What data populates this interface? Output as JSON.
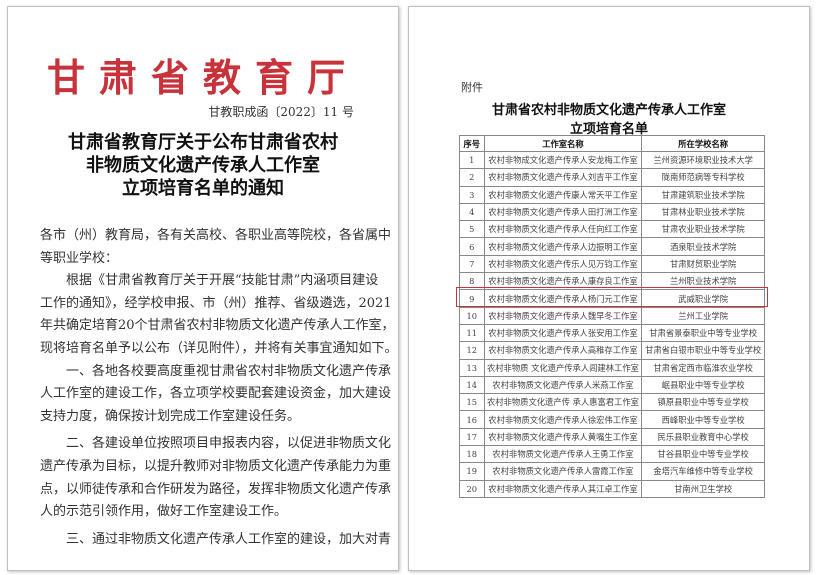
{
  "left_page": {
    "letterhead": "甘肃省教育厅",
    "doc_number": "甘教职成函〔2022〕11 号",
    "heading": [
      "甘肃省教育厅关于公布甘肃省农村",
      "非物质文化遗产传承人工作室",
      "立项培育名单的通知"
    ],
    "body_lines": [
      "各市（州）教育局，各有关高校、各职业高等院校，各省属中",
      "等职业学校：",
      "　　根据《甘肃省教育厅关于开展“技能甘肃”内涵项目建设",
      "工作的通知》，经学校申报、市（州）推荐、省级遴选，2021",
      "年共确定培育20个甘肃省农村非物质文化遗产传承人工作室，",
      "现将培育名单予以公布（详见附件），并将有关事宜通知如下。",
      "　　一、各地各校要高度重视甘肃省农村非物质文化遗产传承",
      "人工作室的建设工作，各立项学校要配套建设资金，加大建设",
      "支持力度，确保按计划完成工作室建设任务。",
      "　　二、各建设单位按照项目申报表内容，以促进非物质文化",
      "遗产传承为目标，以提升教师对非物质文化遗产传承能力为重",
      "点，以师徒传承和合作研发为路径，发挥非物质文化遗产传承",
      "人的示范引领作用，做好工作室建设工作。",
      "　　三、通过非物质文化遗产传承人工作室的建设，加大对青"
    ]
  },
  "right_page": {
    "attachment_label": "附件",
    "title": [
      "甘肃省农村非物质文化遗产传承人工作室",
      "立项培育名单"
    ],
    "columns": [
      "序号",
      "工作室名称",
      "所在学校名称"
    ],
    "highlight_row": 9,
    "highlight_color": "#c8323a",
    "rows": [
      [
        "1",
        "农村非物成文化遗产传承人安龙梅工作室",
        "兰州资源环境职业技术大学"
      ],
      [
        "2",
        "农村非物质文化遗产传承人刘吉平工作室",
        "陇南师范病等专科学校"
      ],
      [
        "3",
        "农村非物质文化遗产传康人常天平工作室",
        "甘肃建筑职业技术学院"
      ],
      [
        "4",
        "农村非物质文化遗产传承人田打洲工作室",
        "甘肃林业职业技术学院"
      ],
      [
        "5",
        "农村非物质文化遗产传承人任向红工作室",
        "甘肃农业职业技术学院"
      ],
      [
        "6",
        "农村非物质文化遗产传承人边振明工作室",
        "酒泉职业技术学院"
      ],
      [
        "7",
        "农村非物质文化遗产传乐人见万钧工作室",
        "甘肃财贸职业学院"
      ],
      [
        "8",
        "农村非物质文化遗产传承人康存良工作室",
        "兰州职业技术学院"
      ],
      [
        "9",
        "农村非物质文化遗产传承人杨门元工作室",
        "武威职业学院"
      ],
      [
        "10",
        "农村非物质文化遗产传承人魏早冬工作室",
        "兰州工业学院"
      ],
      [
        "11",
        "农村非物质文化遗产传承人张安用工作室",
        "甘肃省景泰职业中等专业学校"
      ],
      [
        "12",
        "农村非物质文化遗产传承人高稚存工作室",
        "甘肃省白银市职业中等专业学校"
      ],
      [
        "13",
        "农村非物质 文化遗产传承人闾建林工作室",
        "甘肃省定西市临淮农业学校"
      ],
      [
        "14",
        "农村非物质文化遗产传承人米燕工作室",
        "岷县职业中等专业学校"
      ],
      [
        "15",
        "农村非物质文化遗产传 承人惠富君工作室",
        "镇原县职业中等专业学校"
      ],
      [
        "16",
        "农村非物质文化遗产传承人徐宏伟工作室",
        "西峰职业中等专业学校"
      ],
      [
        "17",
        "农村非物质文化遗产传承人黄嘴生工作室",
        "民乐县职业教育中心学校"
      ],
      [
        "18",
        "农村非物质文化遗产传承人王勇工作室",
        "甘谷县职业中等专业学校"
      ],
      [
        "19",
        "农村非物质文化遗产传承人雷霞工作室",
        "金塔汽车维修中等专业学校"
      ],
      [
        "20",
        "农村非物质文化遗产传承人其江卓工作室",
        "甘南州卫生学校"
      ]
    ]
  }
}
